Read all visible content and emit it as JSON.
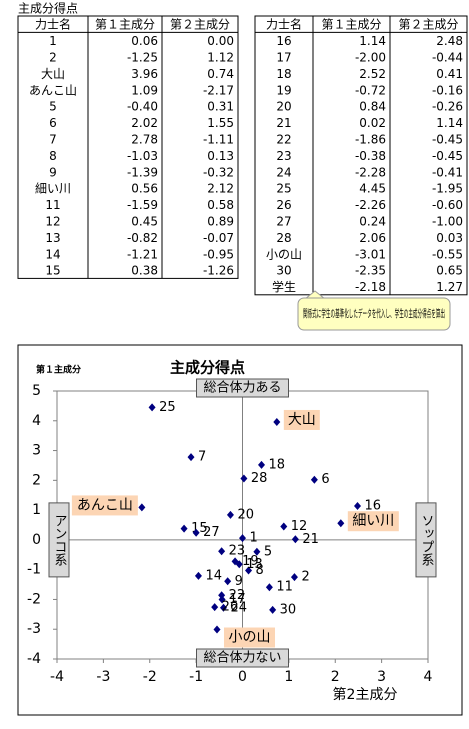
{
  "header": {
    "title": "主成分得点"
  },
  "tables": [
    {
      "columns": [
        "力士名",
        "第１主成分",
        "第２主成分"
      ],
      "rows": [
        [
          "1",
          "0.06",
          "0.00"
        ],
        [
          "2",
          "-1.25",
          "1.12"
        ],
        [
          "大山",
          "3.96",
          "0.74"
        ],
        [
          "あんこ山",
          "1.09",
          "-2.17"
        ],
        [
          "5",
          "-0.40",
          "0.31"
        ],
        [
          "6",
          "2.02",
          "1.55"
        ],
        [
          "7",
          "2.78",
          "-1.11"
        ],
        [
          "8",
          "-1.03",
          "0.13"
        ],
        [
          "9",
          "-1.39",
          "-0.32"
        ],
        [
          "細い川",
          "0.56",
          "2.12"
        ],
        [
          "11",
          "-1.59",
          "0.58"
        ],
        [
          "12",
          "0.45",
          "0.89"
        ],
        [
          "13",
          "-0.82",
          "-0.07"
        ],
        [
          "14",
          "-1.21",
          "-0.95"
        ],
        [
          "15",
          "0.38",
          "-1.26"
        ]
      ]
    },
    {
      "columns": [
        "力士名",
        "第１主成分",
        "第２主成分"
      ],
      "rows": [
        [
          "16",
          "1.14",
          "2.48"
        ],
        [
          "17",
          "-2.00",
          "-0.44"
        ],
        [
          "18",
          "2.52",
          "0.41"
        ],
        [
          "19",
          "-0.72",
          "-0.16"
        ],
        [
          "20",
          "0.84",
          "-0.26"
        ],
        [
          "21",
          "0.02",
          "1.14"
        ],
        [
          "22",
          "-1.86",
          "-0.45"
        ],
        [
          "23",
          "-0.38",
          "-0.45"
        ],
        [
          "24",
          "-2.28",
          "-0.41"
        ],
        [
          "25",
          "4.45",
          "-1.95"
        ],
        [
          "26",
          "-2.26",
          "-0.60"
        ],
        [
          "27",
          "0.24",
          "-1.00"
        ],
        [
          "28",
          "2.06",
          "0.03"
        ],
        [
          "小の山",
          "-3.01",
          "-0.55"
        ],
        [
          "30",
          "-2.35",
          "0.65"
        ],
        [
          "学生",
          "-2.18",
          "1.27"
        ]
      ]
    }
  ],
  "callout": "関係式に学生の基準化したデータを代入し、学生の主成分得点を算出",
  "chart_data": {
    "type": "scatter",
    "title": "主成分得点",
    "x_label": "第2主成分",
    "y_label": "第１主成分",
    "xlim": [
      -4,
      4
    ],
    "ylim": [
      -4,
      5
    ],
    "xticks": [
      -4,
      -3,
      -2,
      -1,
      0,
      1,
      2,
      3,
      4
    ],
    "yticks": [
      -4,
      -3,
      -2,
      -1,
      0,
      1,
      2,
      3,
      4,
      5
    ],
    "series": [
      {
        "color": "#000080",
        "labels": [
          "1",
          "2",
          "大山",
          "あんこ山",
          "5",
          "6",
          "7",
          "8",
          "9",
          "細い川",
          "11",
          "12",
          "13",
          "14",
          "15",
          "16",
          "17",
          "18",
          "19",
          "20",
          "21",
          "22",
          "23",
          "24",
          "25",
          "26",
          "27",
          "28",
          "小の山",
          "30"
        ],
        "x": [
          0.0,
          1.12,
          0.74,
          -2.17,
          0.31,
          1.55,
          -1.11,
          0.13,
          -0.32,
          2.12,
          0.58,
          0.89,
          -0.07,
          -0.95,
          -1.26,
          2.48,
          -0.44,
          0.41,
          -0.16,
          -0.26,
          1.14,
          -0.45,
          -0.45,
          -0.41,
          -1.95,
          -0.6,
          -1.0,
          0.03,
          -0.55,
          0.65
        ],
        "y": [
          0.06,
          -1.25,
          3.96,
          1.09,
          -0.4,
          2.02,
          2.78,
          -1.03,
          -1.39,
          0.56,
          -1.59,
          0.45,
          -0.82,
          -1.21,
          0.38,
          1.14,
          -2.0,
          2.52,
          -0.72,
          0.84,
          0.02,
          -1.86,
          -0.38,
          -2.28,
          4.45,
          -2.26,
          0.24,
          2.06,
          -3.01,
          -2.35
        ]
      }
    ],
    "annotations": {
      "top": "総合体力ある",
      "bottom": "総合体力ない",
      "left": "アンコ系",
      "right": "ソップ系"
    },
    "highlight_color": "#fcd5b4",
    "annotation_color": "#d9d9d9",
    "callout_color": "#ffffc0"
  }
}
